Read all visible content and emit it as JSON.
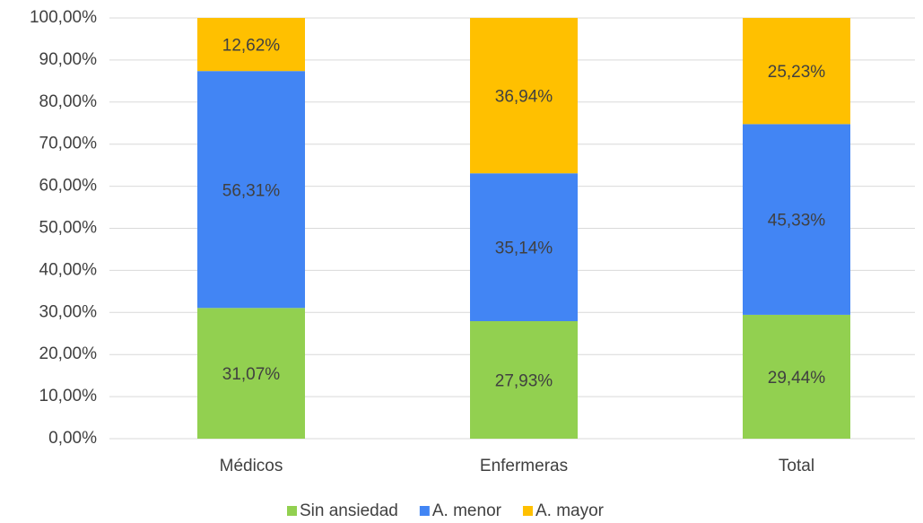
{
  "chart_data": {
    "type": "stacked_bar",
    "categories": [
      "Médicos",
      "Enfermeras",
      "Total"
    ],
    "series": [
      {
        "name": "Sin ansiedad",
        "color": "#92d050",
        "values": [
          31.07,
          27.93,
          29.44
        ],
        "value_labels": [
          "31,07%",
          "27,93%",
          "29,44%"
        ]
      },
      {
        "name": "A. menor",
        "color": "#4285f4",
        "values": [
          56.31,
          35.14,
          45.33
        ],
        "value_labels": [
          "56,31%",
          "35,14%",
          "45,33%"
        ]
      },
      {
        "name": "A. mayor",
        "color": "#ffc000",
        "values": [
          12.62,
          36.94,
          25.23
        ],
        "value_labels": [
          "12,62%",
          "36,94%",
          "25,23%"
        ]
      }
    ],
    "ylim": [
      0,
      100
    ],
    "yticks": [
      {
        "value": 0,
        "label": "0,00%"
      },
      {
        "value": 10,
        "label": "10,00%"
      },
      {
        "value": 20,
        "label": "20,00%"
      },
      {
        "value": 30,
        "label": "30,00%"
      },
      {
        "value": 40,
        "label": "40,00%"
      },
      {
        "value": 50,
        "label": "50,00%"
      },
      {
        "value": 60,
        "label": "60,00%"
      },
      {
        "value": 70,
        "label": "70,00%"
      },
      {
        "value": 80,
        "label": "80,00%"
      },
      {
        "value": 90,
        "label": "90,00%"
      },
      {
        "value": 100,
        "label": "100,00%"
      }
    ],
    "grid": true,
    "legend": "bottom"
  }
}
